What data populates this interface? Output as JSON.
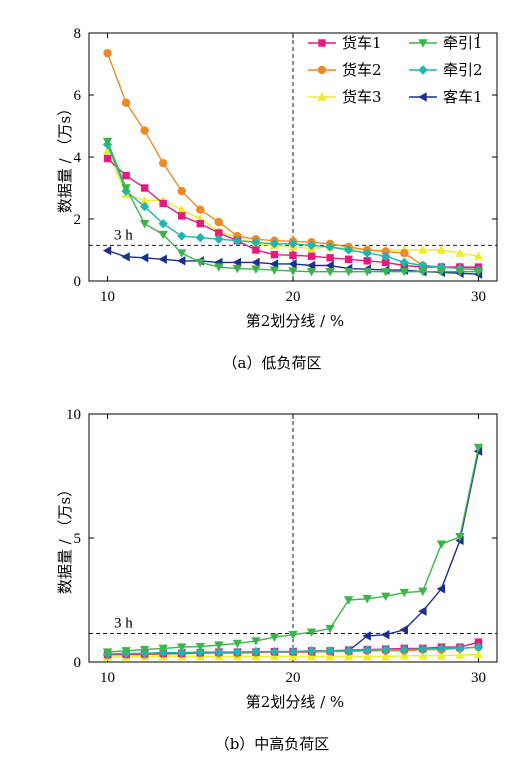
{
  "colors": {
    "货车1": "#e6197f",
    "货车2": "#ee8a25",
    "货车3": "#eded2d",
    "牵引1": "#3bb54a",
    "牵引2": "#1fb5b0",
    "客车1": "#1b2f8f"
  },
  "chart_data": [
    {
      "type": "line",
      "caption": "（a）低负荷区",
      "xlabel": "第2划分线 / %",
      "ylabel": "数据量 / （万s）",
      "xlim": [
        9,
        31
      ],
      "ylim": [
        0,
        8
      ],
      "xticks": [
        10,
        20,
        30
      ],
      "yticks": [
        0,
        2,
        4,
        6,
        8
      ],
      "legend_position": "top-right",
      "vline": {
        "x": 20
      },
      "hline": {
        "y": 1.15,
        "label": "3 h"
      },
      "x": [
        10,
        11,
        12,
        13,
        14,
        15,
        16,
        17,
        18,
        19,
        20,
        21,
        22,
        23,
        24,
        25,
        26,
        27,
        28,
        29,
        30
      ],
      "series": [
        {
          "name": "货车1",
          "marker": "square",
          "values": [
            3.95,
            3.4,
            3.0,
            2.5,
            2.1,
            1.85,
            1.55,
            1.3,
            1.0,
            0.85,
            0.83,
            0.8,
            0.75,
            0.7,
            0.65,
            0.6,
            0.5,
            0.45,
            0.45,
            0.45,
            0.45
          ]
        },
        {
          "name": "货车2",
          "marker": "circle",
          "values": [
            7.35,
            5.75,
            4.85,
            3.8,
            2.9,
            2.3,
            1.9,
            1.45,
            1.35,
            1.3,
            1.28,
            1.25,
            1.2,
            1.1,
            1.0,
            0.95,
            0.9,
            0.5,
            0.45,
            0.45,
            0.4
          ]
        },
        {
          "name": "货车3",
          "marker": "triangle-up",
          "values": [
            4.2,
            2.8,
            2.6,
            2.6,
            2.3,
            2.0,
            1.6,
            1.4,
            1.2,
            1.15,
            1.1,
            1.05,
            1.1,
            1.05,
            1.0,
            1.0,
            1.0,
            1.0,
            1.0,
            0.9,
            0.8
          ]
        },
        {
          "name": "牵引1",
          "marker": "triangle-down",
          "values": [
            4.5,
            3.0,
            1.85,
            1.5,
            0.9,
            0.6,
            0.45,
            0.4,
            0.38,
            0.35,
            0.32,
            0.3,
            0.3,
            0.3,
            0.3,
            0.3,
            0.3,
            0.3,
            0.3,
            0.3,
            0.3
          ]
        },
        {
          "name": "牵引2",
          "marker": "diamond",
          "values": [
            4.4,
            2.9,
            2.4,
            1.85,
            1.45,
            1.4,
            1.35,
            1.3,
            1.25,
            1.2,
            1.2,
            1.15,
            1.1,
            1.0,
            0.9,
            0.8,
            0.6,
            0.5,
            0.45,
            0.4,
            0.35
          ]
        },
        {
          "name": "客车1",
          "marker": "triangle-left",
          "values": [
            0.98,
            0.78,
            0.75,
            0.7,
            0.65,
            0.65,
            0.6,
            0.6,
            0.6,
            0.55,
            0.55,
            0.5,
            0.5,
            0.4,
            0.38,
            0.35,
            0.35,
            0.3,
            0.28,
            0.25,
            0.22
          ]
        }
      ]
    },
    {
      "type": "line",
      "caption": "（b）中高负荷区",
      "xlabel": "第2划分线 / %",
      "ylabel": "数据量 / （万s）",
      "xlim": [
        9,
        31
      ],
      "ylim": [
        0,
        10
      ],
      "xticks": [
        10,
        20,
        30
      ],
      "yticks": [
        0,
        5,
        10
      ],
      "vline": {
        "x": 20
      },
      "hline": {
        "y": 1.15,
        "label": "3 h"
      },
      "x": [
        10,
        11,
        12,
        13,
        14,
        15,
        16,
        17,
        18,
        19,
        20,
        21,
        22,
        23,
        24,
        25,
        26,
        27,
        28,
        29,
        30
      ],
      "series": [
        {
          "name": "货车1",
          "marker": "square",
          "values": [
            0.3,
            0.32,
            0.33,
            0.35,
            0.35,
            0.38,
            0.4,
            0.4,
            0.4,
            0.42,
            0.42,
            0.45,
            0.45,
            0.48,
            0.5,
            0.52,
            0.55,
            0.55,
            0.6,
            0.6,
            0.8
          ]
        },
        {
          "name": "货车2",
          "marker": "circle",
          "values": [
            0.28,
            0.3,
            0.3,
            0.32,
            0.33,
            0.35,
            0.35,
            0.35,
            0.38,
            0.4,
            0.4,
            0.4,
            0.42,
            0.42,
            0.45,
            0.45,
            0.45,
            0.5,
            0.5,
            0.55,
            0.6
          ]
        },
        {
          "name": "货车3",
          "marker": "triangle-up",
          "values": [
            0.2,
            0.2,
            0.22,
            0.22,
            0.22,
            0.22,
            0.22,
            0.22,
            0.22,
            0.22,
            0.22,
            0.22,
            0.22,
            0.22,
            0.22,
            0.22,
            0.25,
            0.25,
            0.25,
            0.28,
            0.3
          ]
        },
        {
          "name": "牵引1",
          "marker": "triangle-down",
          "values": [
            0.4,
            0.45,
            0.5,
            0.55,
            0.6,
            0.62,
            0.68,
            0.75,
            0.85,
            1.0,
            1.1,
            1.2,
            1.35,
            2.5,
            2.55,
            2.65,
            2.8,
            2.85,
            4.75,
            5.05,
            8.65
          ]
        },
        {
          "name": "牵引2",
          "marker": "diamond",
          "values": [
            0.32,
            0.35,
            0.35,
            0.38,
            0.38,
            0.4,
            0.4,
            0.4,
            0.42,
            0.42,
            0.42,
            0.45,
            0.45,
            0.45,
            0.48,
            0.5,
            0.5,
            0.52,
            0.55,
            0.55,
            0.6
          ]
        },
        {
          "name": "客车1",
          "marker": "triangle-left",
          "values": [
            0.3,
            0.3,
            0.32,
            0.33,
            0.35,
            0.35,
            0.38,
            0.38,
            0.4,
            0.4,
            0.4,
            0.4,
            0.42,
            0.45,
            1.05,
            1.1,
            1.3,
            2.05,
            2.95,
            4.9,
            8.5
          ]
        }
      ]
    }
  ]
}
